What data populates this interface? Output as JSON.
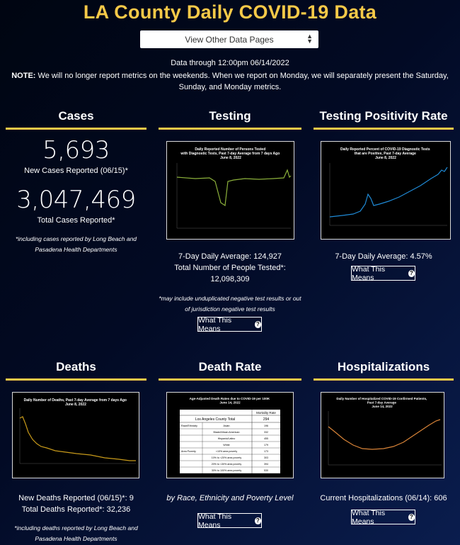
{
  "title": "LA County Daily COVID-19 Data",
  "select": {
    "label": "View Other Data Pages"
  },
  "data_through": "Data through 12:00pm 06/14/2022",
  "note": {
    "label": "NOTE:",
    "text": " We will no longer report metrics on the weekends. When we report on Monday, we will separately present the Saturday, Sunday, and Monday metrics."
  },
  "cases": {
    "heading": "Cases",
    "new_value": "5,693",
    "new_label": "New Cases Reported (06/15)*",
    "total_value": "3,047,469",
    "total_label": "Total Cases Reported*",
    "footnote": "*including cases reported by Long Beach and Pasadena Health Departments"
  },
  "testing": {
    "heading": "Testing",
    "chart_title": "Daily Reported Number of Persons Tested with Diagnostic Tests, Past 7-day Average from 7 days Ago June 8, 2022",
    "avg": "7-Day Daily Average: 124,927",
    "total_label": "Total Number of People Tested*:",
    "total_value": "12,098,309",
    "footnote": "*may include unduplicated negative test results or out of jurisdiction negative test results",
    "button": "What This Means"
  },
  "positivity": {
    "heading": "Testing Positivity Rate",
    "chart_title": "Daily Reported Percent of COVID-19 Diagnostic Tests that are Positive, Past 7-day Average June 8, 2022",
    "avg": "7-Day Daily Average: 4.57%",
    "button": "What This Means"
  },
  "deaths": {
    "heading": "Deaths",
    "chart_title": "Daily Number of Deaths, Past 7-day Average from 7 days Ago June 8, 2022",
    "new": "New Deaths Reported (06/15)*: 9",
    "total": "Total Deaths Reported*: 32,236",
    "footnote": "*including deaths reported by Long Beach and Pasadena Health Departments"
  },
  "death_rate": {
    "heading": "Death Rate",
    "table_title": "Age-Adjusted Death Rates due to COVID-19 per 100K June 14, 2022",
    "col_header": "Mortality Rate",
    "county_label": "Los Angeles County Total",
    "county_value": "294",
    "rows": [
      {
        "group": "Race/Ethnicity",
        "name": "Asian",
        "value": "196"
      },
      {
        "group": "",
        "name": "Black/African American",
        "value": "332"
      },
      {
        "group": "",
        "name": "Hispanic/Latino",
        "value": "455"
      },
      {
        "group": "",
        "name": "White",
        "value": "179"
      },
      {
        "group": "Area Poverty",
        "name": "<10% area poverty",
        "value": "173"
      },
      {
        "group": "",
        "name": "10% to <20% area poverty",
        "value": "303"
      },
      {
        "group": "",
        "name": "20% to <30% area poverty",
        "value": "394"
      },
      {
        "group": "",
        "name": "30% to 100% area poverty",
        "value": "530"
      }
    ],
    "caption": "by Race, Ethnicity and Poverty Level",
    "button": "What This Means"
  },
  "hospitalizations": {
    "heading": "Hospitalizations",
    "chart_title": "Daily Number of Hospitalized COVID-19 Confirmed Patients, Past 7-day Average June 14, 2022",
    "current": "Current Hospitalizations (06/14): 606",
    "button": "What This Means"
  },
  "colors": {
    "accent": "#f7c948",
    "testing_line": "#8cb13b",
    "positivity_line": "#1f8ad6",
    "deaths_line": "#c89a1a",
    "hosp_line": "#d98438"
  }
}
